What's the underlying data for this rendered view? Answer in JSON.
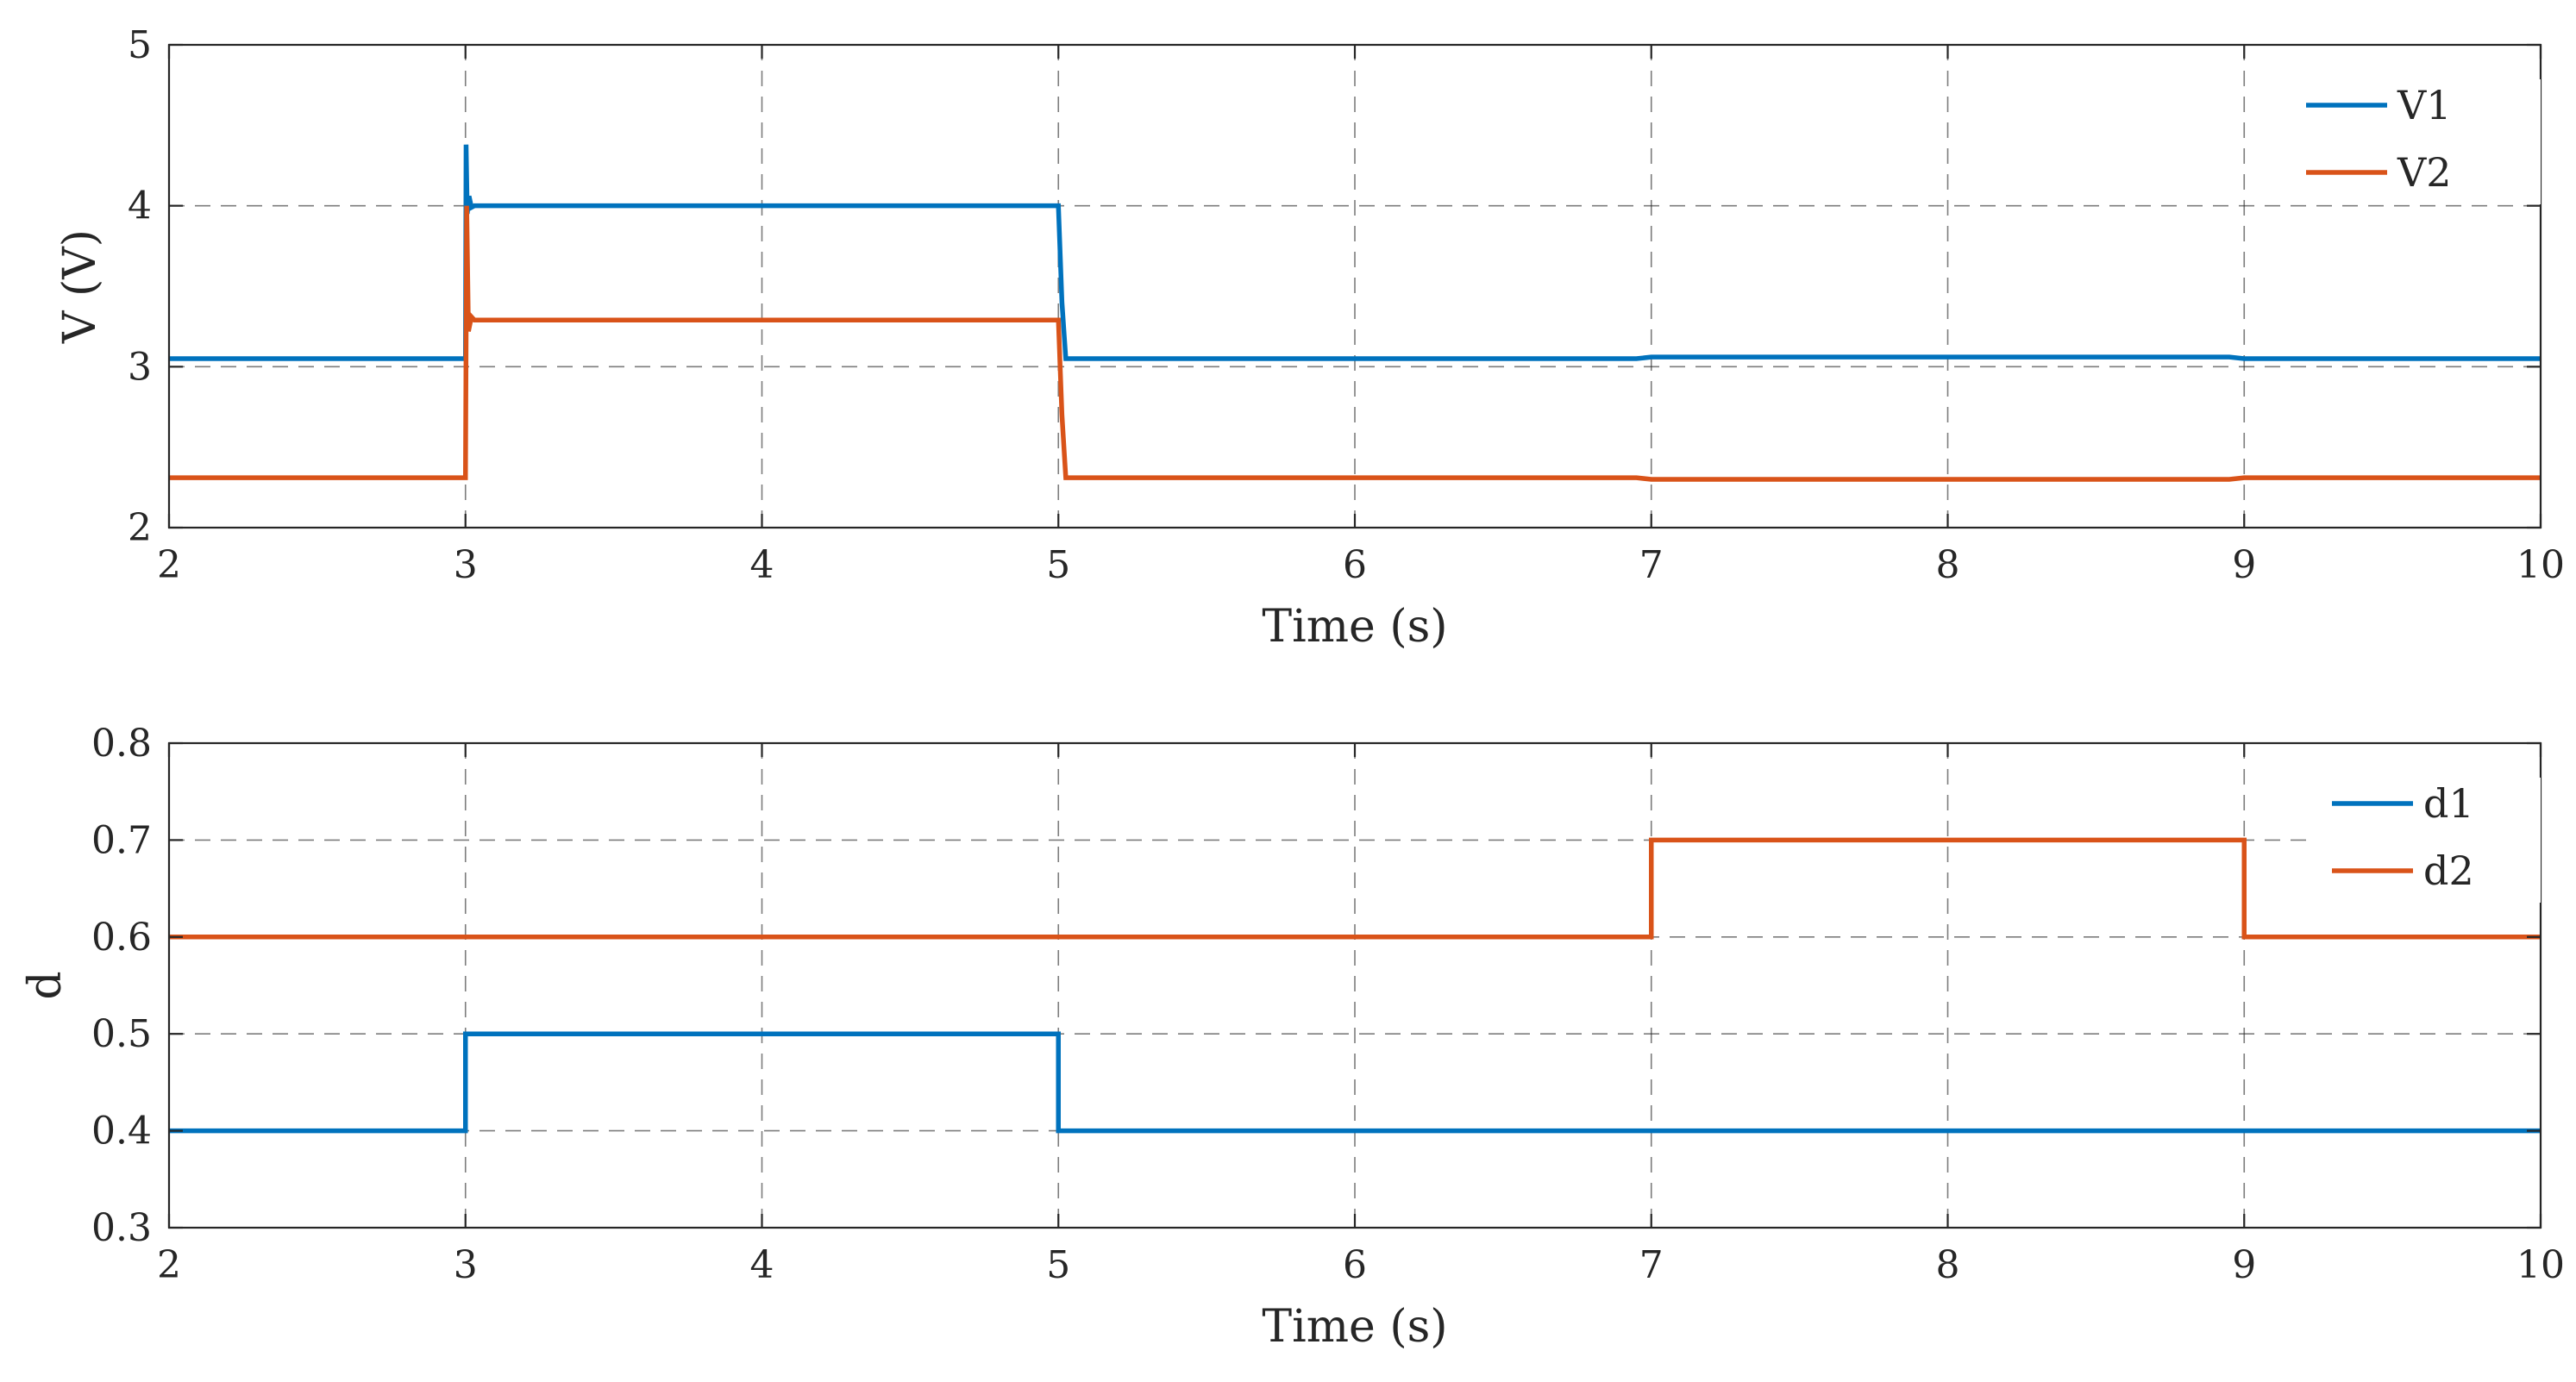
{
  "chart_data": [
    {
      "type": "line",
      "title": "",
      "xlabel": "Time (s)",
      "ylabel": "V (V)",
      "xlim": [
        2,
        10
      ],
      "ylim": [
        2,
        5
      ],
      "xticks": [
        2,
        3,
        4,
        5,
        6,
        7,
        8,
        9,
        10
      ],
      "yticks": [
        2,
        3,
        4,
        5
      ],
      "grid": true,
      "legend_position": "top-right",
      "series": [
        {
          "name": "V1",
          "color": "#0072BD",
          "x": [
            2,
            3,
            3.002,
            3.006,
            3.012,
            3.02,
            3.03,
            5,
            5.012,
            5.025,
            6.95,
            7.0,
            8.95,
            9.0,
            10
          ],
          "y": [
            3.05,
            3.05,
            4.38,
            3.95,
            4.06,
            3.99,
            4.0,
            4.0,
            3.4,
            3.05,
            3.05,
            3.06,
            3.06,
            3.05,
            3.05
          ]
        },
        {
          "name": "V2",
          "color": "#D95319",
          "x": [
            2,
            3,
            3.004,
            3.01,
            3.02,
            3.03,
            5,
            5.012,
            5.025,
            6.95,
            7.0,
            8.95,
            9.0,
            10
          ],
          "y": [
            2.31,
            2.31,
            4.0,
            3.22,
            3.31,
            3.29,
            3.29,
            2.7,
            2.31,
            2.31,
            2.3,
            2.3,
            2.31,
            2.31
          ]
        }
      ]
    },
    {
      "type": "line",
      "title": "",
      "xlabel": "Time (s)",
      "ylabel": "d",
      "xlim": [
        2,
        10
      ],
      "ylim": [
        0.3,
        0.8
      ],
      "xticks": [
        2,
        3,
        4,
        5,
        6,
        7,
        8,
        9,
        10
      ],
      "yticks": [
        0.3,
        0.4,
        0.5,
        0.6,
        0.7,
        0.8
      ],
      "grid": true,
      "legend_position": "top-right",
      "series": [
        {
          "name": "d1",
          "color": "#0072BD",
          "x": [
            2,
            3,
            3,
            5,
            5,
            10
          ],
          "y": [
            0.4,
            0.4,
            0.5,
            0.5,
            0.4,
            0.4
          ]
        },
        {
          "name": "d2",
          "color": "#D95319",
          "x": [
            2,
            7,
            7,
            9,
            9,
            10
          ],
          "y": [
            0.6,
            0.6,
            0.7,
            0.7,
            0.6,
            0.6
          ]
        }
      ]
    }
  ]
}
